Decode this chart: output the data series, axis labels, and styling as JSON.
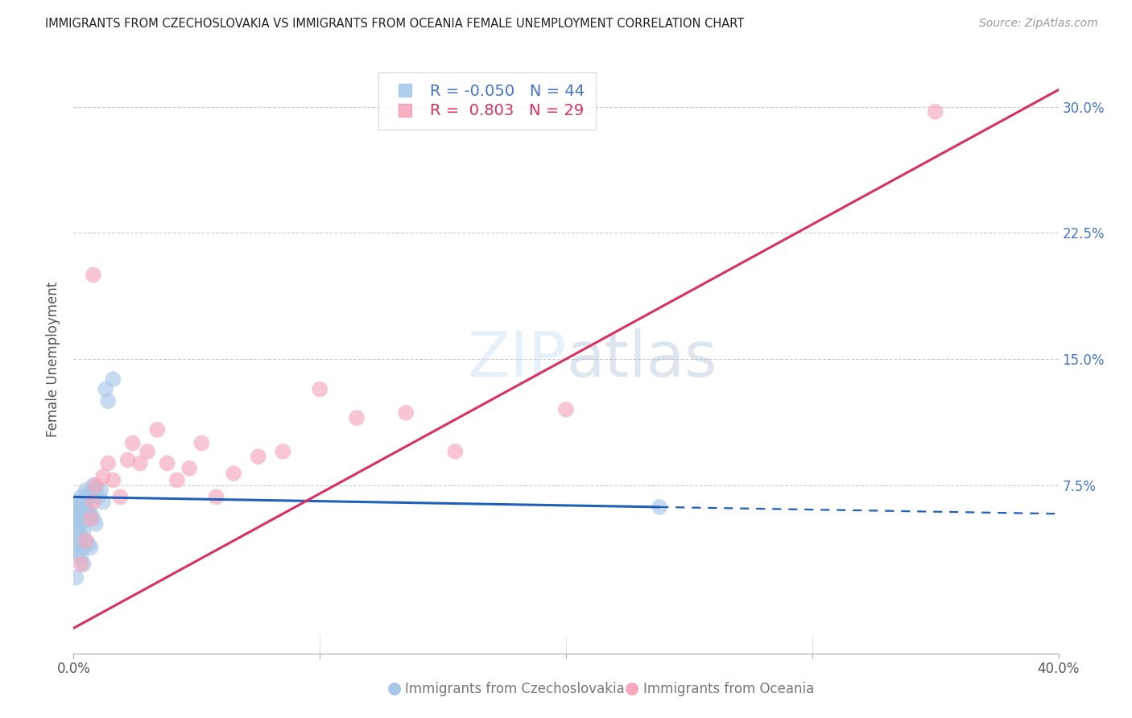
{
  "title": "IMMIGRANTS FROM CZECHOSLOVAKIA VS IMMIGRANTS FROM OCEANIA FEMALE UNEMPLOYMENT CORRELATION CHART",
  "source": "Source: ZipAtlas.com",
  "ylabel": "Female Unemployment",
  "ytick_labels": [
    "",
    "7.5%",
    "15.0%",
    "22.5%",
    "30.0%"
  ],
  "ytick_values": [
    0.0,
    0.075,
    0.15,
    0.225,
    0.3
  ],
  "xlim": [
    0.0,
    0.4
  ],
  "ylim": [
    -0.025,
    0.325
  ],
  "r_czechoslovakia": -0.05,
  "n_czechoslovakia": 44,
  "r_oceania": 0.803,
  "n_oceania": 29,
  "color_czechoslovakia": "#a8c8e8",
  "color_oceania": "#f5a8bc",
  "line_color_czechoslovakia": "#2060b8",
  "line_color_oceania": "#d83060",
  "cz_x": [
    0.001,
    0.001,
    0.001,
    0.001,
    0.002,
    0.002,
    0.002,
    0.002,
    0.002,
    0.002,
    0.002,
    0.003,
    0.003,
    0.003,
    0.003,
    0.003,
    0.003,
    0.004,
    0.004,
    0.004,
    0.004,
    0.004,
    0.005,
    0.005,
    0.005,
    0.005,
    0.006,
    0.006,
    0.006,
    0.007,
    0.007,
    0.007,
    0.008,
    0.008,
    0.009,
    0.009,
    0.01,
    0.011,
    0.012,
    0.013,
    0.014,
    0.016,
    0.238,
    0.001
  ],
  "cz_y": [
    0.062,
    0.058,
    0.05,
    0.038,
    0.065,
    0.06,
    0.055,
    0.05,
    0.045,
    0.04,
    0.035,
    0.068,
    0.063,
    0.058,
    0.052,
    0.045,
    0.032,
    0.065,
    0.06,
    0.048,
    0.038,
    0.028,
    0.072,
    0.065,
    0.058,
    0.042,
    0.07,
    0.06,
    0.04,
    0.068,
    0.058,
    0.038,
    0.075,
    0.055,
    0.072,
    0.052,
    0.068,
    0.072,
    0.065,
    0.132,
    0.125,
    0.138,
    0.062,
    0.02
  ],
  "oc_x": [
    0.003,
    0.005,
    0.007,
    0.008,
    0.009,
    0.012,
    0.014,
    0.016,
    0.019,
    0.022,
    0.024,
    0.027,
    0.03,
    0.034,
    0.038,
    0.042,
    0.047,
    0.052,
    0.058,
    0.065,
    0.075,
    0.085,
    0.1,
    0.115,
    0.135,
    0.155,
    0.2,
    0.35,
    0.008
  ],
  "oc_y": [
    0.028,
    0.042,
    0.055,
    0.065,
    0.075,
    0.08,
    0.088,
    0.078,
    0.068,
    0.09,
    0.1,
    0.088,
    0.095,
    0.108,
    0.088,
    0.078,
    0.085,
    0.1,
    0.068,
    0.082,
    0.092,
    0.095,
    0.132,
    0.115,
    0.118,
    0.095,
    0.12,
    0.297,
    0.2
  ],
  "cz_line_x0": 0.0,
  "cz_line_x_solid_end": 0.238,
  "cz_line_x1": 0.4,
  "cz_line_y0": 0.068,
  "cz_line_y_solid_end": 0.062,
  "cz_line_y1": 0.058,
  "oc_line_x0": 0.0,
  "oc_line_x1": 0.4,
  "oc_line_y0": -0.01,
  "oc_line_y1": 0.31,
  "legend_label_cz": "R = -0.050   N = 44",
  "legend_label_oc": "R =  0.803   N = 29",
  "bottom_label_cz": "Immigrants from Czechoslovakia",
  "bottom_label_oc": "Immigrants from Oceania"
}
